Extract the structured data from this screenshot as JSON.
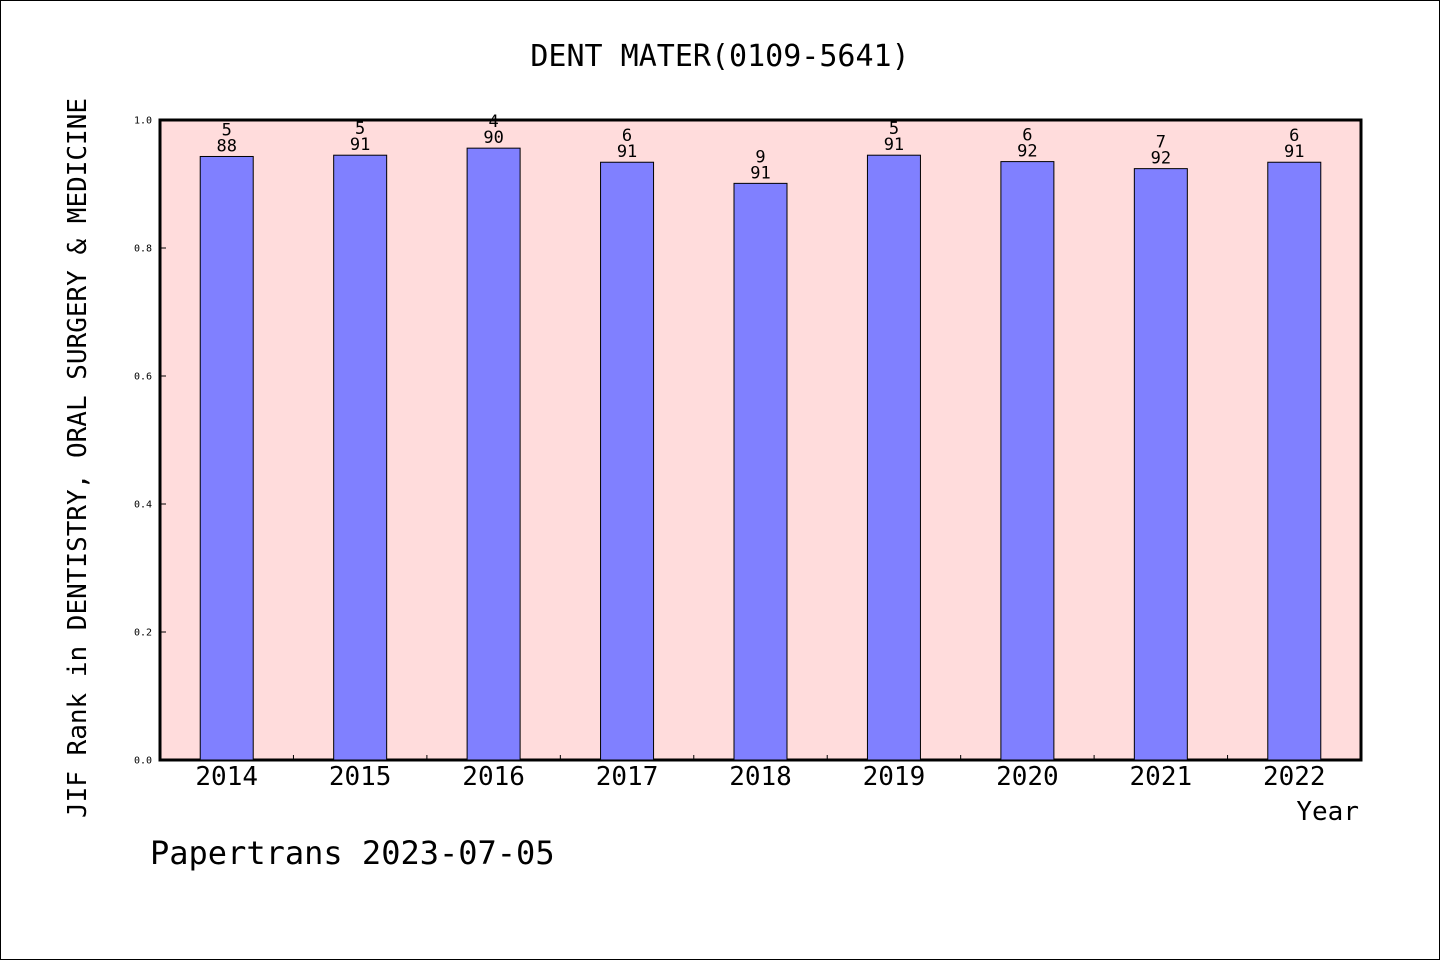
{
  "chart_data": {
    "type": "bar",
    "title": "DENT MATER(0109-5641)",
    "xlabel": "Year",
    "ylabel": "JIF Rank in DENTISTRY, ORAL SURGERY & MEDICINE",
    "categories": [
      "2014",
      "2015",
      "2016",
      "2017",
      "2018",
      "2019",
      "2020",
      "2021",
      "2022"
    ],
    "values": [
      0.943,
      0.945,
      0.956,
      0.934,
      0.901,
      0.945,
      0.935,
      0.924,
      0.934
    ],
    "ranks": [
      "5",
      "5",
      "4",
      "6",
      "9",
      "5",
      "6",
      "7",
      "6"
    ],
    "totals": [
      "88",
      "91",
      "90",
      "91",
      "91",
      "91",
      "92",
      "92",
      "91"
    ],
    "ylim": [
      0,
      1.0
    ],
    "yticks": [
      "0.0",
      "0.2",
      "0.4",
      "0.6",
      "0.8",
      "1.0"
    ],
    "grid": false,
    "colors": {
      "bar": "#8080ff",
      "plot_background": "#ffdcdc",
      "axis": "#000000"
    }
  },
  "footer": {
    "watermark": "Papertrans 2023-07-05"
  }
}
